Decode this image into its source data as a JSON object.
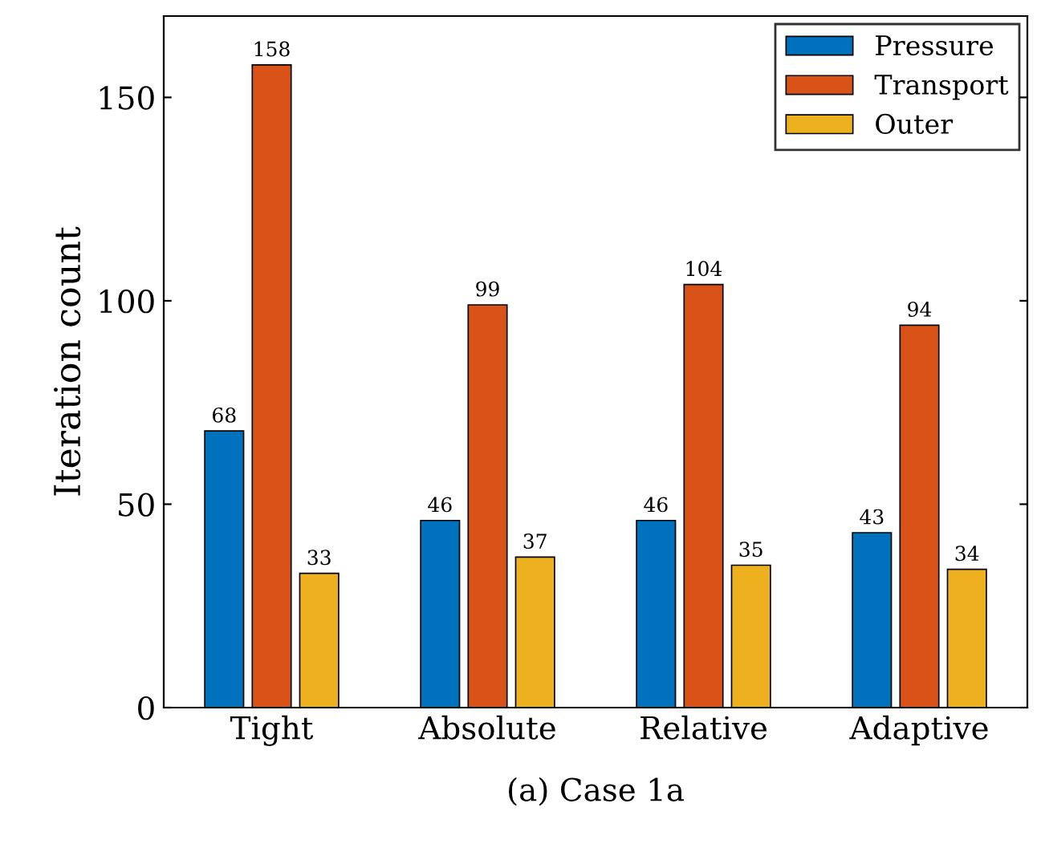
{
  "chart_data": {
    "type": "bar",
    "categories": [
      "Tight",
      "Absolute",
      "Relative",
      "Adaptive"
    ],
    "series": [
      {
        "name": "Pressure",
        "color": "#0072bd",
        "values": [
          68,
          46,
          46,
          43
        ]
      },
      {
        "name": "Transport",
        "color": "#d95319",
        "values": [
          158,
          99,
          104,
          94
        ]
      },
      {
        "name": "Outer",
        "color": "#edb120",
        "values": [
          33,
          37,
          35,
          34
        ]
      }
    ],
    "ylabel": "Iteration count",
    "xlabel": "(a) Case 1a",
    "ylim": [
      0,
      170
    ],
    "yticks": [
      0,
      50,
      100,
      150
    ],
    "data_labels": true,
    "legend": "top right",
    "grid": false
  }
}
